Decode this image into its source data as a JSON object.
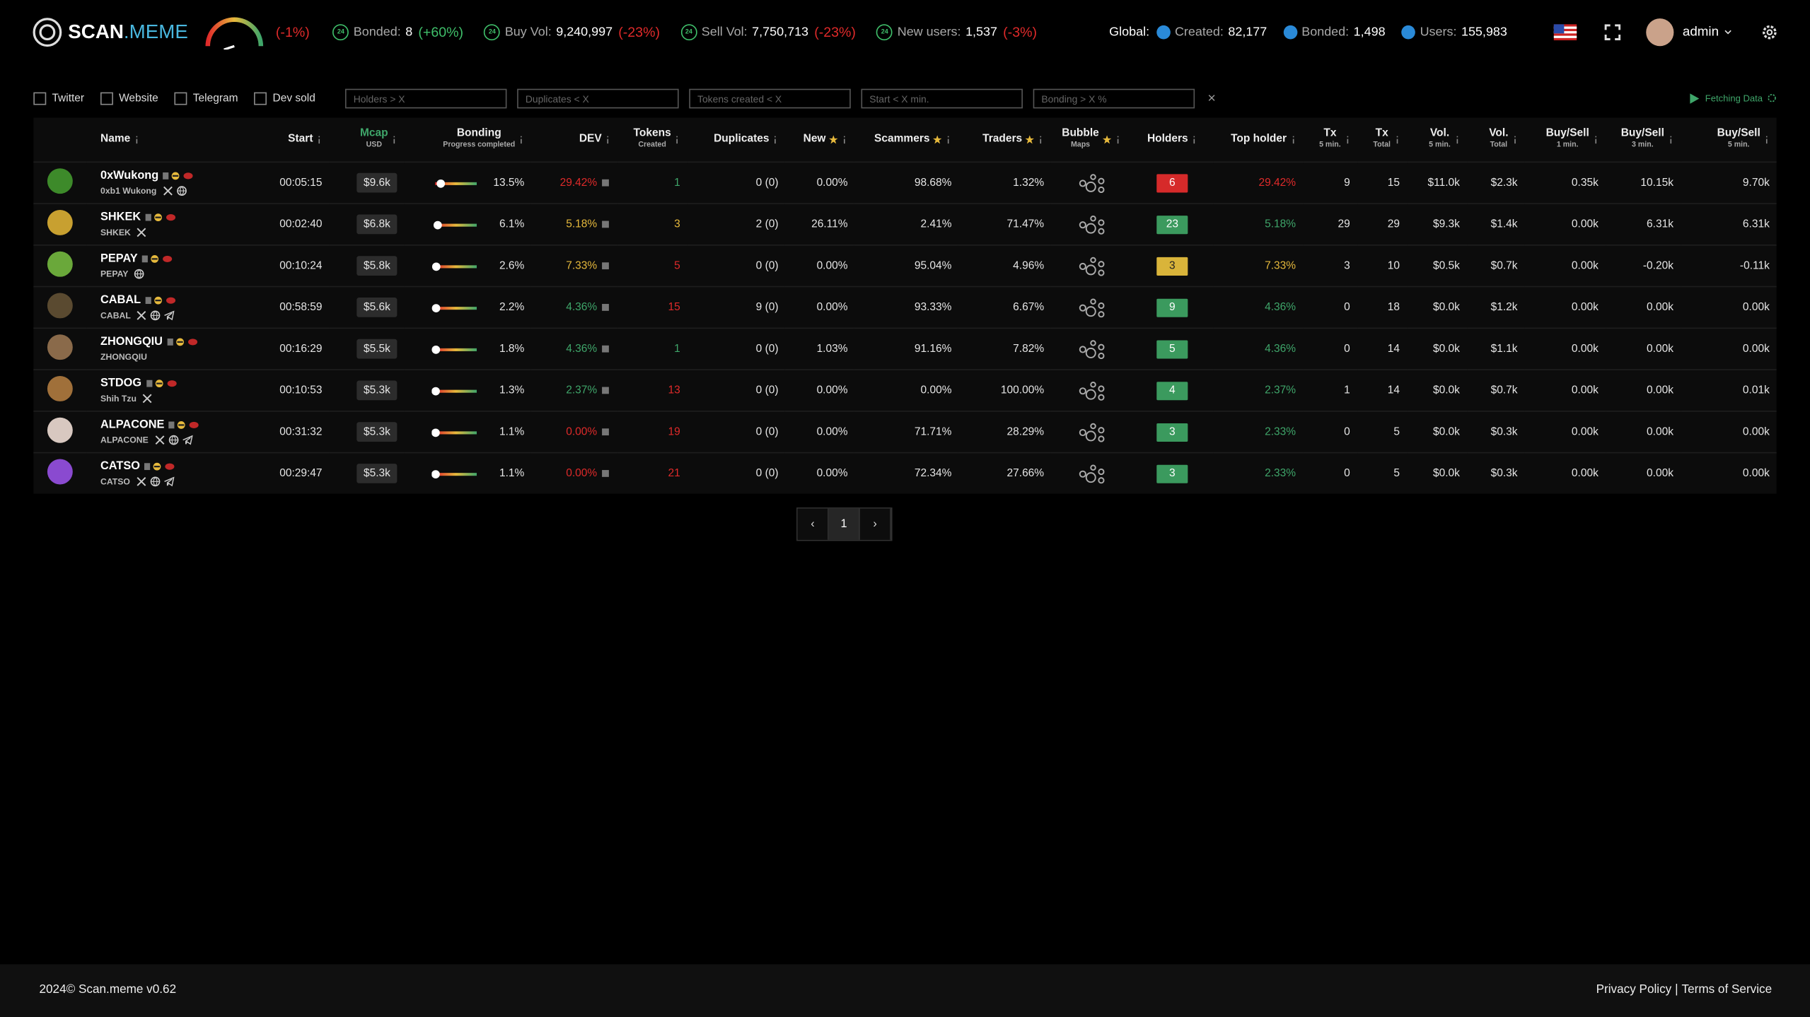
{
  "header": {
    "logo_a": "SCAN",
    "logo_b": ".MEME",
    "sentiment": "(-1%)",
    "badge": "24",
    "stats": [
      {
        "label": "Bonded:",
        "value": "8",
        "change": "(+60%)",
        "color": "#3fbf6a"
      },
      {
        "label": "Buy Vol:",
        "value": "9,240,997",
        "change": "(-23%)",
        "color": "#e02a2a"
      },
      {
        "label": "Sell Vol:",
        "value": "7,750,713",
        "change": "(-23%)",
        "color": "#e02a2a"
      },
      {
        "label": "New users:",
        "value": "1,537",
        "change": "(-3%)",
        "color": "#e02a2a"
      }
    ],
    "global_label": "Global:",
    "global_stats": [
      {
        "label": "Created:",
        "value": "82,177"
      },
      {
        "label": "Bonded:",
        "value": "1,498"
      },
      {
        "label": "Users:",
        "value": "155,983"
      }
    ],
    "user": "admin"
  },
  "filters": {
    "checkboxes": [
      "Twitter",
      "Website",
      "Telegram",
      "Dev sold"
    ],
    "inputs": [
      "Holders > X",
      "Duplicates < X",
      "Tokens created < X",
      "Start < X min.",
      "Bonding > X %"
    ],
    "clear": "×",
    "status": "Fetching Data"
  },
  "table": {
    "columns": [
      {
        "title": "Name",
        "kind": "name"
      },
      {
        "title": "Start"
      },
      {
        "title": "Mcap",
        "sub": "USD",
        "kind": "mcap",
        "color": "#3fa66a"
      },
      {
        "title": "Bonding",
        "sub": "Progress completed",
        "kind": "bonding"
      },
      {
        "title": "DEV",
        "kind": "dev"
      },
      {
        "title": "Tokens",
        "sub": "Created"
      },
      {
        "title": "Duplicates"
      },
      {
        "title": "New",
        "star": true
      },
      {
        "title": "Scammers",
        "star": true
      },
      {
        "title": "Traders",
        "star": true
      },
      {
        "title": "Bubble",
        "sub": "Maps",
        "star": true,
        "kind": "bubble"
      },
      {
        "title": "Holders",
        "kind": "holders"
      },
      {
        "title": "Top holder"
      },
      {
        "title": "Tx",
        "sub": "5 min."
      },
      {
        "title": "Tx",
        "sub": "Total"
      },
      {
        "title": "Vol.",
        "sub": "5 min."
      },
      {
        "title": "Vol.",
        "sub": "Total"
      },
      {
        "title": "Buy/Sell",
        "sub": "1 min."
      },
      {
        "title": "Buy/Sell",
        "sub": "3 min."
      },
      {
        "title": "Buy/Sell",
        "sub": "5 min."
      }
    ],
    "rows": [
      {
        "name": "0xWukong",
        "ticker": "0xb1 Wukong",
        "avatar": "#3d8a2a",
        "links": [
          "twitter",
          "website"
        ],
        "cells": [
          "00:05:15",
          "$9.6k",
          "13.5%",
          "29.42%",
          "1",
          "0 (0)",
          "0.00%",
          "98.68%",
          "1.32%",
          null,
          "6",
          "29.42%",
          "9",
          "15",
          "$11.0k",
          "$2.3k",
          "0.35k",
          "10.15k",
          "9.70k"
        ],
        "colors": [
          null,
          null,
          null,
          "#e02a2a",
          "#3fa66a",
          null,
          null,
          null,
          null,
          null,
          "#d62a2a",
          "#e02a2a",
          null,
          null,
          null,
          null,
          null,
          null,
          null
        ]
      },
      {
        "name": "SHKEK",
        "ticker": "SHKEK",
        "avatar": "#c8a030",
        "links": [
          "twitter"
        ],
        "cells": [
          "00:02:40",
          "$6.8k",
          "6.1%",
          "5.18%",
          "3",
          "2 (0)",
          "26.11%",
          "2.41%",
          "71.47%",
          null,
          "23",
          "5.18%",
          "29",
          "29",
          "$9.3k",
          "$1.4k",
          "0.00k",
          "6.31k",
          "6.31k"
        ],
        "colors": [
          null,
          null,
          null,
          "#e6b93c",
          "#e6b93c",
          null,
          null,
          null,
          null,
          null,
          "#3b9a5e",
          "#3fa66a",
          null,
          null,
          null,
          null,
          null,
          null,
          null
        ]
      },
      {
        "name": "PEPAY",
        "ticker": "PEPAY",
        "avatar": "#6aa83a",
        "links": [
          "website"
        ],
        "cells": [
          "00:10:24",
          "$5.8k",
          "2.6%",
          "7.33%",
          "5",
          "0 (0)",
          "0.00%",
          "95.04%",
          "4.96%",
          null,
          "3",
          "7.33%",
          "3",
          "10",
          "$0.5k",
          "$0.7k",
          "0.00k",
          "-0.20k",
          "-0.11k"
        ],
        "colors": [
          null,
          null,
          null,
          "#e6b93c",
          "#e02a2a",
          null,
          null,
          null,
          null,
          null,
          "#d9b43a",
          "#e6b93c",
          null,
          null,
          null,
          null,
          null,
          null,
          null
        ]
      },
      {
        "name": "CABAL",
        "ticker": "CABAL",
        "avatar": "#5a4a30",
        "links": [
          "twitter",
          "website",
          "telegram"
        ],
        "cells": [
          "00:58:59",
          "$5.6k",
          "2.2%",
          "4.36%",
          "15",
          "9 (0)",
          "0.00%",
          "93.33%",
          "6.67%",
          null,
          "9",
          "4.36%",
          "0",
          "18",
          "$0.0k",
          "$1.2k",
          "0.00k",
          "0.00k",
          "0.00k"
        ],
        "colors": [
          null,
          null,
          null,
          "#3fa66a",
          "#e02a2a",
          null,
          null,
          null,
          null,
          null,
          "#3b9a5e",
          "#3fa66a",
          null,
          null,
          null,
          null,
          null,
          null,
          null
        ]
      },
      {
        "name": "ZHONGQIU",
        "ticker": "ZHONGQIU",
        "avatar": "#8a6a4a",
        "links": [],
        "cells": [
          "00:16:29",
          "$5.5k",
          "1.8%",
          "4.36%",
          "1",
          "0 (0)",
          "1.03%",
          "91.16%",
          "7.82%",
          null,
          "5",
          "4.36%",
          "0",
          "14",
          "$0.0k",
          "$1.1k",
          "0.00k",
          "0.00k",
          "0.00k"
        ],
        "colors": [
          null,
          null,
          null,
          "#3fa66a",
          "#3fa66a",
          null,
          null,
          null,
          null,
          null,
          "#3b9a5e",
          "#3fa66a",
          null,
          null,
          null,
          null,
          null,
          null,
          null
        ]
      },
      {
        "name": "STDOG",
        "ticker": "Shih Tzu",
        "avatar": "#a0703a",
        "links": [
          "twitter"
        ],
        "cells": [
          "00:10:53",
          "$5.3k",
          "1.3%",
          "2.37%",
          "13",
          "0 (0)",
          "0.00%",
          "0.00%",
          "100.00%",
          null,
          "4",
          "2.37%",
          "1",
          "14",
          "$0.0k",
          "$0.7k",
          "0.00k",
          "0.00k",
          "0.01k"
        ],
        "colors": [
          null,
          null,
          null,
          "#3fa66a",
          "#e02a2a",
          null,
          null,
          null,
          null,
          null,
          "#3b9a5e",
          "#3fa66a",
          null,
          null,
          null,
          null,
          null,
          null,
          null
        ]
      },
      {
        "name": "ALPACONE",
        "ticker": "ALPACONE",
        "avatar": "#d8c8c0",
        "links": [
          "twitter",
          "website",
          "telegram"
        ],
        "cells": [
          "00:31:32",
          "$5.3k",
          "1.1%",
          "0.00%",
          "19",
          "0 (0)",
          "0.00%",
          "71.71%",
          "28.29%",
          null,
          "3",
          "2.33%",
          "0",
          "5",
          "$0.0k",
          "$0.3k",
          "0.00k",
          "0.00k",
          "0.00k"
        ],
        "colors": [
          null,
          null,
          null,
          "#e02a2a",
          "#e02a2a",
          null,
          null,
          null,
          null,
          null,
          "#3b9a5e",
          "#3fa66a",
          null,
          null,
          null,
          null,
          null,
          null,
          null
        ]
      },
      {
        "name": "CATSO",
        "ticker": "CATSO",
        "avatar": "#8a4ad0",
        "links": [
          "twitter",
          "website",
          "telegram"
        ],
        "cells": [
          "00:29:47",
          "$5.3k",
          "1.1%",
          "0.00%",
          "21",
          "0 (0)",
          "0.00%",
          "72.34%",
          "27.66%",
          null,
          "3",
          "2.33%",
          "0",
          "5",
          "$0.0k",
          "$0.3k",
          "0.00k",
          "0.00k",
          "0.00k"
        ],
        "colors": [
          null,
          null,
          null,
          "#e02a2a",
          "#e02a2a",
          null,
          null,
          null,
          null,
          null,
          "#3b9a5e",
          "#3fa66a",
          null,
          null,
          null,
          null,
          null,
          null,
          null
        ]
      }
    ]
  },
  "pagination": {
    "prev": "‹",
    "page": "1",
    "next": "›"
  },
  "footer": {
    "copyright": "2024© Scan.meme v0.62",
    "privacy": "Privacy Policy",
    "separator": "|",
    "terms": "Terms of Service"
  }
}
